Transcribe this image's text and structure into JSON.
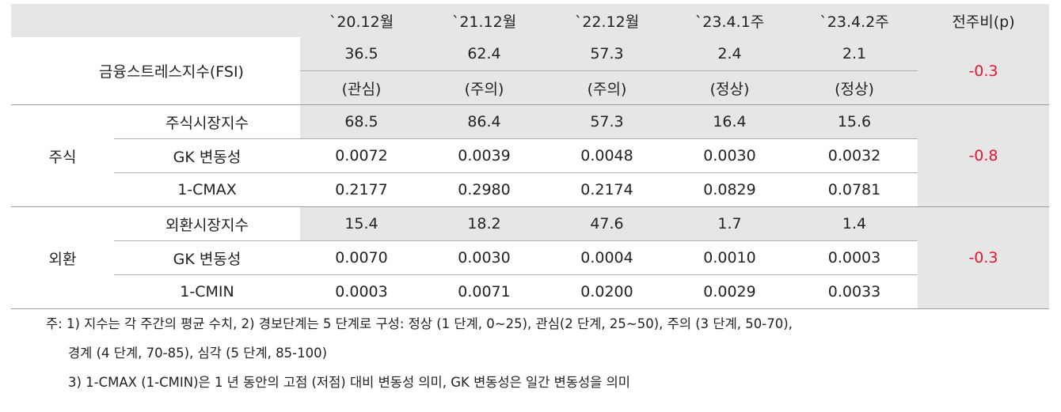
{
  "header": {
    "cols": [
      "`20.12월",
      "`21.12월",
      "`22.12월",
      "`23.4.1주",
      "`23.4.2주",
      "전주비(p)"
    ]
  },
  "fsi": {
    "label": "금융스트레스지수(FSI)",
    "values": [
      "36.5",
      "62.4",
      "57.3",
      "2.4",
      "2.1"
    ],
    "levels": [
      "(관심)",
      "(주의)",
      "(주의)",
      "(정상)",
      "(정상)"
    ],
    "change": "-0.3"
  },
  "stock": {
    "group": "주식",
    "change": "-0.8",
    "rows": [
      {
        "label": "주식시장지수",
        "values": [
          "68.5",
          "86.4",
          "57.3",
          "16.4",
          "15.6"
        ]
      },
      {
        "label": "GK 변동성",
        "values": [
          "0.0072",
          "0.0039",
          "0.0048",
          "0.0030",
          "0.0032"
        ]
      },
      {
        "label": "1-CMAX",
        "values": [
          "0.2177",
          "0.2980",
          "0.2174",
          "0.0829",
          "0.0781"
        ]
      }
    ]
  },
  "fx": {
    "group": "외환",
    "change": "-0.3",
    "rows": [
      {
        "label": "외환시장지수",
        "values": [
          "15.4",
          "18.2",
          "47.6",
          "1.7",
          "1.4"
        ]
      },
      {
        "label": "GK 변동성",
        "values": [
          "0.0070",
          "0.0030",
          "0.0004",
          "0.0010",
          "0.0003"
        ]
      },
      {
        "label": "1-CMIN",
        "values": [
          "0.0003",
          "0.0071",
          "0.0200",
          "0.0029",
          "0.0033"
        ]
      }
    ]
  },
  "notes": [
    "주: 1) 지수는 각 주간의 평균 수치, 2) 경보단계는 5 단계로 구성: 정상 (1 단계, 0~25), 관심(2 단계, 25~50), 주의 (3 단계, 50-70),",
    "경계 (4 단계, 70-85), 심각 (5 단계, 85-100)",
    "3) 1-CMAX (1-CMIN)은 1 년 동안의 고점 (저점) 대비 변동성 의미, GK 변동성은 일간 변동성을 의미"
  ],
  "colors": {
    "shade": "#e6e6e6",
    "negative": "#e8142f"
  }
}
